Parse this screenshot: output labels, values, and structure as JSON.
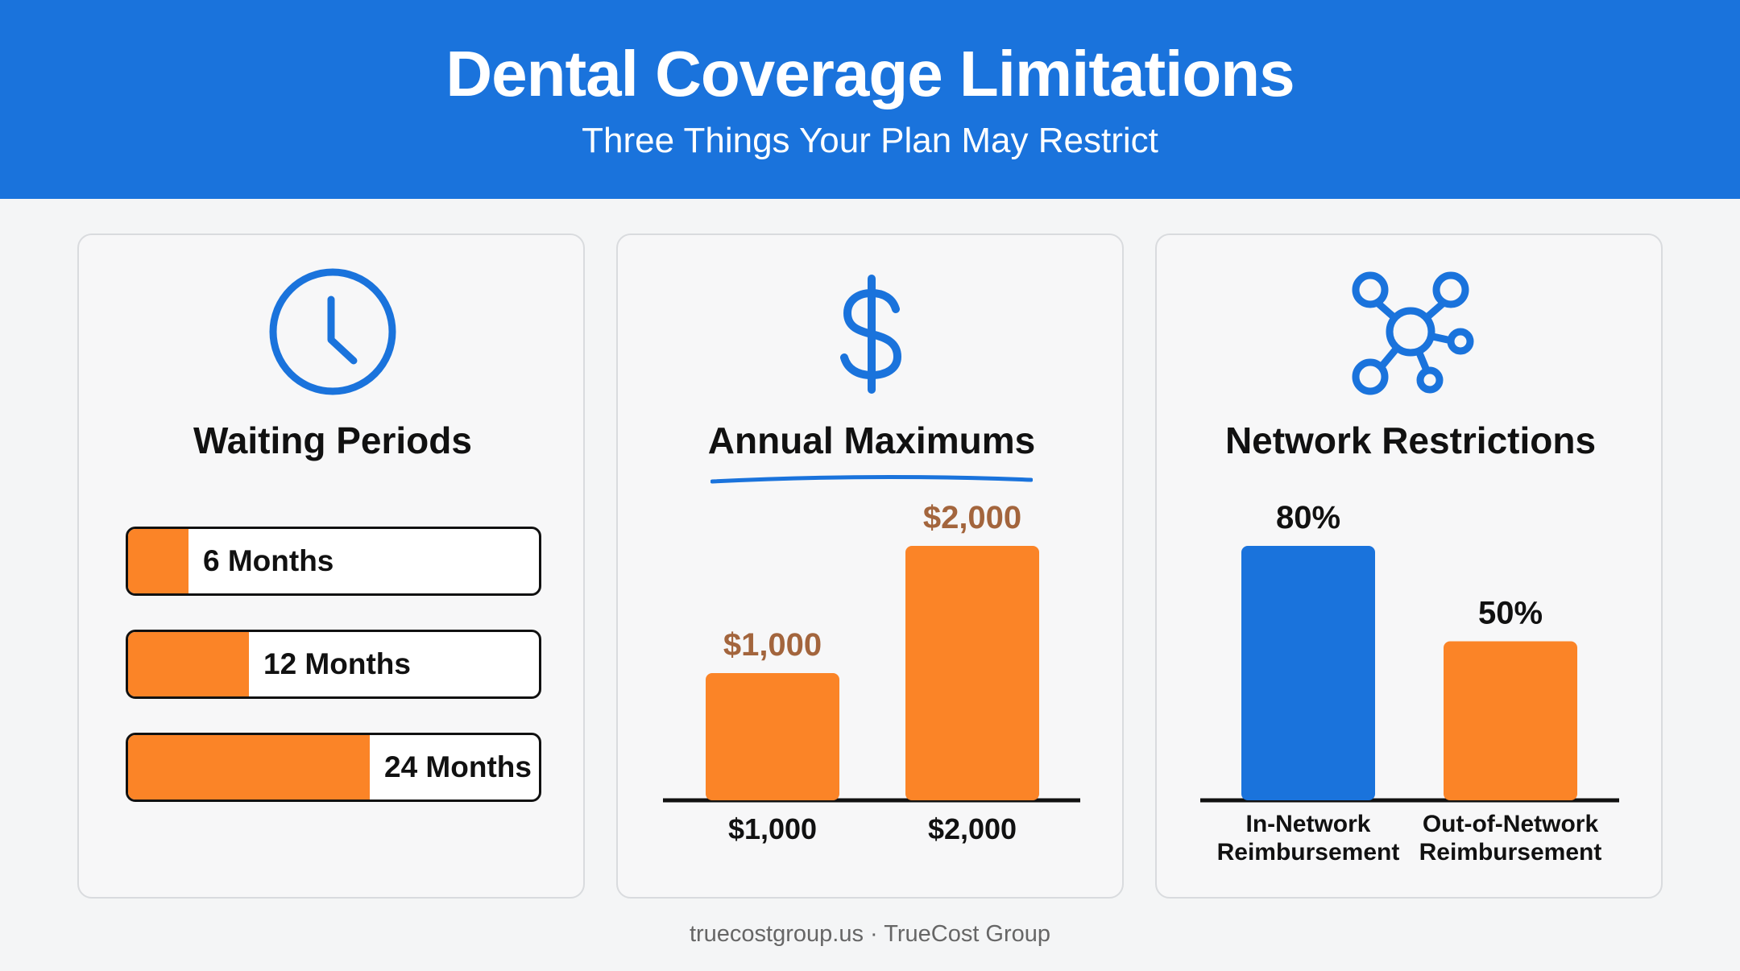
{
  "header": {
    "title": "Dental Coverage Limitations",
    "subtitle": "Three Things Your Plan May Restrict"
  },
  "colors": {
    "primary": "#1a73dc",
    "accent": "#fb8427",
    "value_label": "#a3653d"
  },
  "cards": [
    {
      "title": "Waiting Periods",
      "icon": "clock-icon"
    },
    {
      "title": "Annual Maximums",
      "icon": "dollar-sign-icon"
    },
    {
      "title": "Network Restrictions",
      "icon": "network-nodes-icon"
    }
  ],
  "footer": {
    "text": "truecostgroup.us · TrueCost Group"
  },
  "chart_data": [
    {
      "type": "bar",
      "orientation": "horizontal",
      "categories": [
        "6 Months",
        "12 Months",
        "24 Months"
      ],
      "values": [
        6,
        12,
        24
      ],
      "title": "Waiting Periods"
    },
    {
      "type": "bar",
      "categories": [
        "$1,000",
        "$2,000"
      ],
      "values": [
        1000,
        2000
      ],
      "value_labels": [
        "$1,000",
        "$2,000"
      ],
      "title": "Annual Maximums"
    },
    {
      "type": "bar",
      "categories": [
        [
          "In-Network",
          "Reimbursement"
        ],
        [
          "Out-of-Network",
          "Reimbursement"
        ]
      ],
      "values": [
        80,
        50
      ],
      "value_labels": [
        "80%",
        "50%"
      ],
      "colors": [
        "#1a73dc",
        "#fb8427"
      ],
      "title": "Network Restrictions"
    }
  ]
}
